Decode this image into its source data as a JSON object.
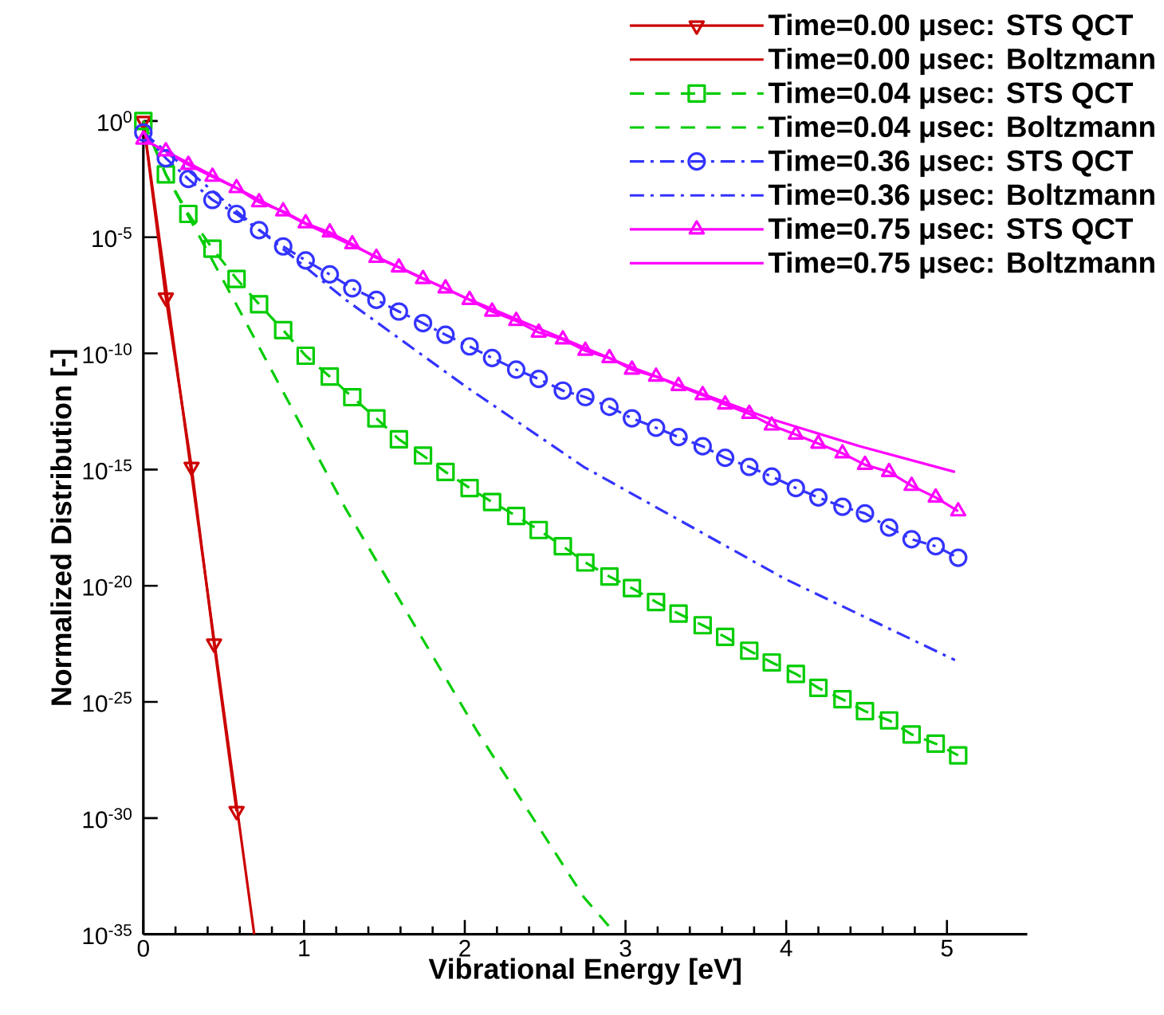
{
  "chart_data": {
    "type": "line",
    "xlabel": "Vibrational Energy [eV]",
    "ylabel": "Normalized Distribution [-]",
    "log": "y",
    "legend": "top right",
    "xlim": [
      0,
      5.5
    ],
    "xticks": [
      0,
      1,
      2,
      3,
      4,
      5
    ],
    "ylim": [
      1e-35,
      1
    ],
    "yticks": [
      {
        "value": 1,
        "label": "10$^{0}$"
      },
      {
        "value": 1e-05,
        "label": "10$^{-5}$"
      },
      {
        "value": 1e-10,
        "label": "10$^{-10}$"
      },
      {
        "value": 1e-15,
        "label": "10$^{-15}$"
      },
      {
        "value": 1e-20,
        "label": "10$^{-20}$"
      },
      {
        "value": 1e-25,
        "label": "10$^{-25}$"
      },
      {
        "value": 1e-30,
        "label": "10$^{-30}$"
      },
      {
        "value": 1e-35,
        "label": "10$^{-35}$"
      }
    ],
    "series": [
      {
        "name": "Time=0.00 μsec: STS QCT",
        "color": "#cc0000",
        "marker": "triangle-down",
        "line_style": "solid",
        "x": [
          0,
          0.14,
          0.3,
          0.44,
          0.58
        ],
        "values": [
          1,
          2.5e-08,
          1.3e-15,
          3.2e-23,
          2e-30
        ]
      },
      {
        "name": "Time=0.00 μsec: Boltzmann",
        "color": "#cc0000",
        "marker": "none",
        "line_style": "solid",
        "x": [
          0,
          0.69
        ],
        "values": [
          1,
          1e-35
        ]
      },
      {
        "name": "Time=0.04 μsec: STS QCT",
        "color": "#00cc00",
        "marker": "square",
        "line_style": "dashed",
        "x": [
          0,
          0.14,
          0.28,
          0.43,
          0.58,
          0.72,
          0.87,
          1.01,
          1.16,
          1.3,
          1.45,
          1.59,
          1.74,
          1.88,
          2.03,
          2.17,
          2.32,
          2.46,
          2.61,
          2.75,
          2.9,
          3.04,
          3.19,
          3.33,
          3.48,
          3.62,
          3.77,
          3.91,
          4.06,
          4.2,
          4.35,
          4.49,
          4.64,
          4.78,
          4.93,
          5.07
        ],
        "values": [
          1,
          0.005,
          0.0001,
          3.2e-06,
          1.6e-07,
          1.3e-08,
          1e-09,
          7.9e-11,
          1e-11,
          1.3e-12,
          1.6e-13,
          2e-14,
          4e-15,
          7.9e-16,
          1.6e-16,
          4e-17,
          1e-17,
          2.5e-18,
          5e-19,
          1e-19,
          2.5e-20,
          7.9e-21,
          2e-21,
          6.3e-22,
          2e-22,
          6.3e-23,
          1.6e-23,
          5e-24,
          1.6e-24,
          4e-25,
          1.3e-25,
          4e-26,
          1.6e-26,
          4e-27,
          1.6e-27,
          5e-28
        ]
      },
      {
        "name": "Time=0.04 μsec: Boltzmann",
        "color": "#00cc00",
        "marker": "none",
        "line_style": "dashed",
        "x": [
          0,
          0.14,
          0.61,
          1.26,
          2.08,
          2.74,
          2.94
        ],
        "values": [
          1,
          0.005,
          5e-09,
          2e-17,
          5e-27,
          4e-34,
          1e-35
        ]
      },
      {
        "name": "Time=0.36 μsec: STS QCT",
        "color": "#3333ff",
        "marker": "circle",
        "line_style": "dashdot",
        "x": [
          0,
          0.14,
          0.28,
          0.43,
          0.58,
          0.72,
          0.87,
          1.01,
          1.16,
          1.3,
          1.45,
          1.59,
          1.74,
          1.88,
          2.03,
          2.17,
          2.32,
          2.46,
          2.61,
          2.75,
          2.9,
          3.04,
          3.19,
          3.33,
          3.48,
          3.62,
          3.77,
          3.91,
          4.06,
          4.2,
          4.35,
          4.49,
          4.64,
          4.78,
          4.93,
          5.07
        ],
        "values": [
          0.32,
          0.025,
          0.0032,
          0.0004,
          0.0001,
          2e-05,
          4e-06,
          1e-06,
          2.5e-07,
          6.3e-08,
          2e-08,
          6.3e-09,
          2e-09,
          6.3e-10,
          2e-10,
          6.3e-11,
          2e-11,
          7.9e-12,
          2.5e-12,
          1.3e-12,
          5e-13,
          1.6e-13,
          6.3e-14,
          2.5e-14,
          1e-14,
          3.2e-15,
          1.3e-15,
          5e-16,
          1.6e-16,
          6.3e-17,
          2.5e-17,
          1.3e-17,
          3.2e-18,
          1e-18,
          5e-19,
          1.6e-19
        ]
      },
      {
        "name": "Time=0.36 μsec: Boltzmann",
        "color": "#3333ff",
        "marker": "none",
        "line_style": "dashdot",
        "x": [
          0,
          0.6,
          1.26,
          2.0,
          2.74,
          3.99,
          5.05
        ],
        "values": [
          0.32,
          0.0001,
          2e-08,
          4e-12,
          1.3e-15,
          2e-20,
          6.3e-24
        ]
      },
      {
        "name": "Time=0.75 μsec: STS QCT",
        "color": "#ff00ff",
        "marker": "triangle",
        "line_style": "solid",
        "x": [
          0,
          0.14,
          0.28,
          0.43,
          0.58,
          0.72,
          0.87,
          1.01,
          1.16,
          1.3,
          1.45,
          1.59,
          1.74,
          1.88,
          2.03,
          2.17,
          2.32,
          2.46,
          2.61,
          2.75,
          2.9,
          3.04,
          3.19,
          3.33,
          3.48,
          3.62,
          3.77,
          3.91,
          4.06,
          4.2,
          4.35,
          4.49,
          4.64,
          4.78,
          4.93,
          5.07
        ],
        "values": [
          0.16,
          0.05,
          0.013,
          0.004,
          0.0013,
          0.00032,
          0.00013,
          4e-05,
          1.6e-05,
          5e-06,
          1.3e-06,
          5e-07,
          1.6e-07,
          6.3e-08,
          2e-08,
          6.3e-09,
          2.5e-09,
          7.9e-10,
          4e-10,
          1.3e-10,
          6.3e-11,
          2e-11,
          1e-11,
          4e-12,
          1.6e-12,
          6.3e-13,
          2.5e-13,
          7.9e-14,
          3.2e-14,
          1.3e-14,
          5e-15,
          1.6e-15,
          7.9e-16,
          2e-16,
          6.3e-17,
          1.6e-17
        ]
      },
      {
        "name": "Time=0.75 μsec: Boltzmann",
        "color": "#ff00ff",
        "marker": "none",
        "line_style": "solid",
        "x": [
          0,
          1.0,
          2.0,
          3.0,
          3.5,
          3.89,
          4.46,
          5.05
        ],
        "values": [
          0.16,
          4e-05,
          2.5e-08,
          3.2e-11,
          1.6e-12,
          1.6e-13,
          1e-14,
          7.9e-16
        ]
      }
    ]
  }
}
